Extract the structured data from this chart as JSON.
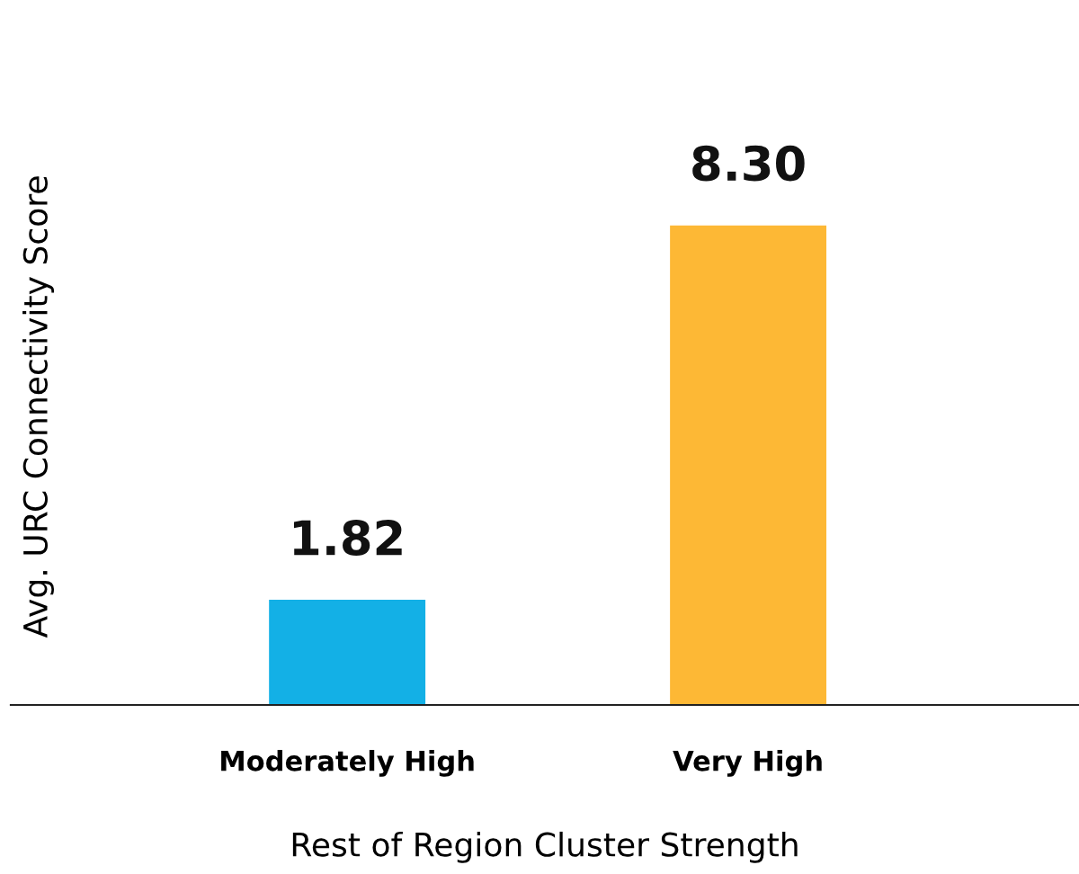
{
  "chart_data": {
    "type": "bar",
    "xlabel": "Rest of Region Cluster Strength",
    "ylabel": "Avg. URC Connectivity Score",
    "categories": [
      "Moderately High",
      "Very High"
    ],
    "values": [
      1.82,
      8.3
    ],
    "colors": [
      "#13b0e6",
      "#fdb835"
    ],
    "value_labels": [
      "1.82",
      "8.30"
    ],
    "grid": false,
    "legend": false
  }
}
